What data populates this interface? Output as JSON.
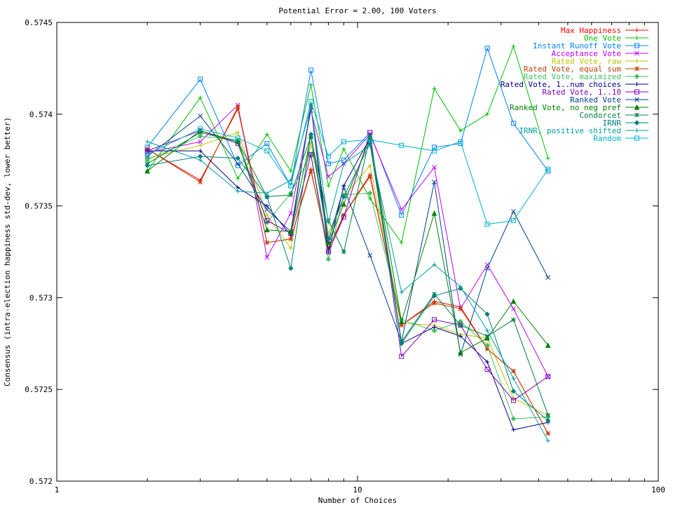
{
  "chart_data": {
    "type": "line",
    "title": "Potential Error = 2.00, 100 Voters",
    "xlabel": "Number of Choices",
    "ylabel": "Consensus (intra-election happiness std-dev, lower better)",
    "x_scale": "log",
    "xlim": [
      1,
      100
    ],
    "ylim": [
      0.572,
      0.5745
    ],
    "x_ticks": [
      1,
      10,
      100
    ],
    "x_tick_labels": [
      "1",
      "10",
      "100"
    ],
    "y_ticks": [
      0.572,
      0.5725,
      0.573,
      0.5735,
      0.574,
      0.5745
    ],
    "y_tick_labels": [
      "0.572",
      "0.5725",
      "0.573",
      "0.5735",
      "0.574",
      "0.5745"
    ],
    "legend_position": "top-right",
    "x": [
      2,
      3,
      4,
      5,
      6,
      7,
      8,
      9,
      11,
      14,
      18,
      22,
      27,
      33,
      43
    ],
    "series": [
      {
        "name": "Max Happiness",
        "color": "#ff0000",
        "marker": "plus",
        "values": [
          0.57381,
          0.57364,
          0.57403,
          0.5733,
          0.57332,
          0.5737,
          0.57325,
          0.57345,
          0.57367,
          0.57285,
          0.57298,
          0.57295,
          0.57272,
          0.5726,
          0.57226
        ]
      },
      {
        "name": "One Vote",
        "color": "#00c000",
        "marker": "plus",
        "values": [
          0.57369,
          0.57409,
          0.57365,
          0.57389,
          0.57369,
          0.57416,
          0.57361,
          0.57381,
          0.57354,
          0.5733,
          0.57414,
          0.57391,
          0.574,
          0.57437,
          0.57376
        ]
      },
      {
        "name": "Instant Runoff Vote",
        "color": "#0080ff",
        "marker": "square",
        "values": [
          0.57382,
          0.57419,
          0.57372,
          0.57384,
          0.57361,
          0.57424,
          0.57373,
          0.57375,
          0.5739,
          0.57345,
          0.57382,
          0.57384,
          0.57436,
          0.57395,
          0.57369
        ]
      },
      {
        "name": "Acceptance Vote",
        "color": "#c000ff",
        "marker": "x",
        "values": [
          0.57379,
          0.57385,
          0.57405,
          0.57322,
          0.57346,
          0.57402,
          0.57366,
          0.57373,
          0.57389,
          0.57348,
          0.57371,
          0.57294,
          0.57318,
          0.57294,
          0.57257
        ]
      },
      {
        "name": "Rated Vote, raw",
        "color": "#c0c000",
        "marker": "plus",
        "values": [
          0.57376,
          0.57383,
          0.5739,
          0.57345,
          0.57327,
          0.57384,
          0.57335,
          0.57355,
          0.57372,
          0.57286,
          0.57285,
          0.5728,
          0.57278,
          0.57245,
          0.57236
        ]
      },
      {
        "name": "Rated Vote, equal sum",
        "color": "#c04000",
        "marker": "star",
        "values": [
          0.57381,
          0.57363,
          0.57404,
          0.5733,
          0.57332,
          0.57369,
          0.57327,
          0.57345,
          0.57366,
          0.57285,
          0.57297,
          0.57294,
          0.57272,
          0.5726,
          0.57226
        ]
      },
      {
        "name": "Rated Vote, maximized",
        "color": "#40c060",
        "marker": "diamond",
        "values": [
          0.57375,
          0.57388,
          0.57386,
          0.57341,
          0.57357,
          0.57378,
          0.57321,
          0.57356,
          0.57357,
          0.57288,
          0.57282,
          0.57287,
          0.57274,
          0.57234,
          0.57235
        ]
      },
      {
        "name": "Rated Vote, 1..num choices",
        "color": "#000080",
        "marker": "plus",
        "values": [
          0.5738,
          0.5738,
          0.5736,
          0.5735,
          0.57334,
          0.57405,
          0.57325,
          0.57361,
          0.57387,
          0.57275,
          0.57284,
          0.57279,
          0.57265,
          0.57228,
          0.57232
        ]
      },
      {
        "name": "Rated Vote, 1..10",
        "color": "#8000c0",
        "marker": "square",
        "values": [
          0.5738,
          0.57391,
          0.57384,
          0.57342,
          0.57335,
          0.57378,
          0.57325,
          0.57344,
          0.5739,
          0.57268,
          0.57288,
          0.57285,
          0.57261,
          0.57244,
          0.57257
        ]
      },
      {
        "name": "Ranked Vote",
        "color": "#004090",
        "marker": "x",
        "values": [
          0.57377,
          0.57399,
          0.57373,
          0.57348,
          0.57336,
          0.57404,
          0.57331,
          0.5736,
          0.57323,
          0.57276,
          0.57363,
          0.57269,
          0.57316,
          0.57347,
          0.57311
        ]
      },
      {
        "name": "Ranked Vote, no neg pref",
        "color": "#008000",
        "marker": "triangle",
        "values": [
          0.57369,
          0.57391,
          0.57385,
          0.57337,
          0.57336,
          0.57388,
          0.5733,
          0.57351,
          0.57387,
          0.57287,
          0.57346,
          0.5727,
          0.57278,
          0.57298,
          0.57274
        ]
      },
      {
        "name": "Condorcet",
        "color": "#008040",
        "marker": "star",
        "values": [
          0.57373,
          0.5739,
          0.57385,
          0.57355,
          0.57356,
          0.57388,
          0.57342,
          0.57325,
          0.57388,
          0.57276,
          0.57302,
          0.57285,
          0.57279,
          0.57288,
          0.57236
        ]
      },
      {
        "name": "IRNR",
        "color": "#008080",
        "marker": "diamond",
        "values": [
          0.57372,
          0.57377,
          0.57376,
          0.57355,
          0.57316,
          0.57389,
          0.57332,
          0.57355,
          0.57384,
          0.57275,
          0.57301,
          0.57305,
          0.57291,
          0.57249,
          0.57233
        ]
      },
      {
        "name": "IRNR, positive shifted",
        "color": "#00a0a0",
        "marker": "plus",
        "values": [
          0.57385,
          0.57375,
          0.57358,
          0.57357,
          0.57364,
          0.57404,
          0.57341,
          0.57373,
          0.57383,
          0.57303,
          0.57318,
          0.57306,
          0.57282,
          0.57256,
          0.57222
        ]
      },
      {
        "name": "Random",
        "color": "#00b0d0",
        "marker": "square",
        "values": [
          0.57378,
          0.57392,
          0.57387,
          0.5738,
          0.57361,
          0.57407,
          0.57377,
          0.57385,
          0.57386,
          0.57383,
          0.5738,
          0.57385,
          0.5734,
          0.57342,
          0.5737
        ]
      }
    ]
  }
}
